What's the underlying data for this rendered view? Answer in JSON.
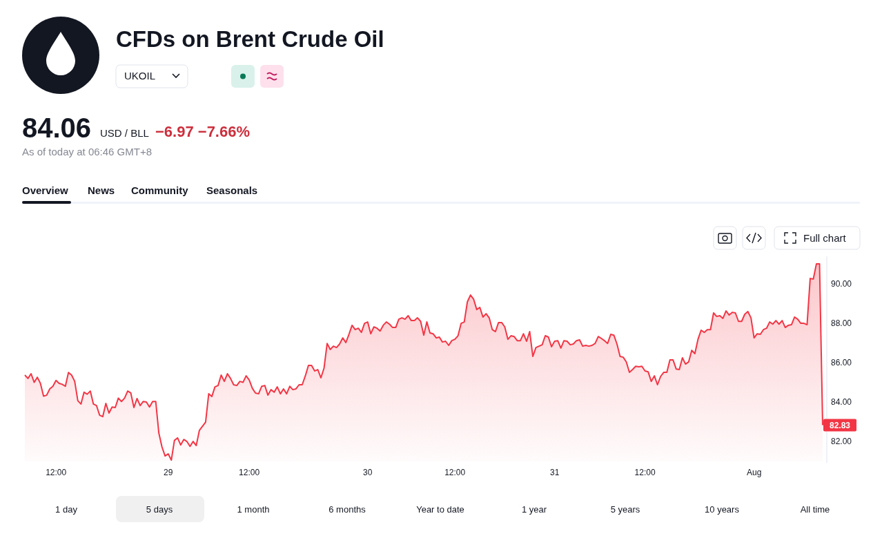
{
  "chart_data": {
    "type": "area",
    "title": "CFDs on Brent Crude Oil",
    "color": "#f23645",
    "categories": [
      null,
      null,
      null,
      null,
      null,
      null,
      null,
      null,
      null,
      null,
      "12:00",
      null,
      null,
      null,
      null,
      null,
      null,
      null,
      null,
      null,
      null,
      null,
      null,
      null,
      null,
      null,
      null,
      null,
      null,
      null,
      null,
      null,
      null,
      null,
      null,
      null,
      null,
      null,
      null,
      null,
      null,
      null,
      null,
      null,
      null,
      null,
      "29",
      null,
      null,
      null,
      null,
      null,
      null,
      null,
      null,
      null,
      null,
      null,
      null,
      null,
      null,
      null,
      null,
      null,
      null,
      null,
      null,
      null,
      null,
      null,
      null,
      null,
      "12:00",
      null,
      null,
      null,
      null,
      null,
      null,
      null,
      null,
      null,
      null,
      null,
      null,
      null,
      null,
      null,
      null,
      null,
      null,
      null,
      null,
      null,
      null,
      null,
      null,
      null,
      null,
      null,
      null,
      null,
      null,
      null,
      null,
      null,
      null,
      null,
      null,
      null,
      "30",
      null,
      null,
      null,
      null,
      null,
      null,
      null,
      null,
      null,
      null,
      null,
      null,
      null,
      null,
      null,
      null,
      null,
      null,
      null,
      null,
      null,
      null,
      null,
      null,
      null,
      null,
      null,
      "12:00",
      null,
      null,
      null,
      null,
      null,
      null,
      null,
      null,
      null,
      null,
      null,
      null,
      null,
      null,
      null,
      null,
      null,
      null,
      null,
      null,
      null,
      null,
      null,
      null,
      null,
      null,
      null,
      null,
      null,
      null,
      null,
      "31",
      null,
      null,
      null,
      null,
      null,
      null,
      null,
      null,
      null,
      null,
      null,
      null,
      null,
      null,
      null,
      null,
      null,
      null,
      null,
      null,
      null,
      null,
      null,
      null,
      null,
      null,
      null,
      null,
      "12:00",
      null,
      null,
      null,
      null,
      null,
      null,
      null,
      null,
      null,
      null,
      null,
      null,
      null,
      null,
      null,
      null,
      null,
      null,
      null,
      null,
      null,
      null,
      null,
      null,
      null,
      null,
      null,
      null,
      null,
      null,
      null,
      null,
      null,
      null,
      "Aug",
      null,
      null,
      null,
      null,
      null,
      null,
      null,
      null,
      null,
      null,
      null,
      null,
      null,
      null,
      null,
      null,
      null,
      null,
      null,
      null,
      null,
      null
    ],
    "values": [
      85.37,
      85.2,
      85.44,
      85.0,
      85.26,
      84.95,
      84.3,
      84.35,
      84.67,
      84.8,
      85.1,
      84.95,
      84.9,
      84.8,
      85.5,
      85.37,
      85.05,
      84.07,
      83.9,
      84.5,
      84.4,
      84.56,
      83.9,
      83.82,
      83.33,
      83.26,
      83.93,
      83.44,
      83.75,
      83.72,
      84.2,
      84.03,
      84.2,
      84.56,
      84.46,
      83.72,
      84.18,
      83.82,
      84.03,
      84.0,
      83.75,
      84.03,
      84.03,
      82.42,
      81.72,
      81.26,
      81.37,
      81.05,
      82.05,
      82.18,
      81.82,
      82.1,
      82.0,
      81.75,
      82.0,
      81.79,
      82.56,
      82.77,
      82.98,
      84.42,
      84.28,
      84.77,
      84.84,
      85.37,
      85.05,
      85.44,
      85.2,
      84.88,
      84.84,
      85.05,
      85.0,
      85.33,
      85.12,
      84.7,
      84.46,
      84.42,
      84.8,
      84.84,
      84.35,
      84.63,
      84.5,
      84.77,
      84.42,
      84.67,
      84.42,
      84.8,
      84.63,
      84.67,
      84.88,
      84.88,
      85.33,
      85.86,
      85.86,
      85.58,
      85.65,
      85.23,
      85.72,
      86.98,
      86.67,
      86.84,
      86.77,
      86.95,
      87.26,
      87.02,
      87.44,
      87.9,
      87.68,
      87.75,
      87.54,
      88.0,
      88.07,
      87.47,
      87.82,
      87.75,
      87.61,
      87.9,
      88.07,
      87.96,
      87.79,
      87.79,
      88.21,
      88.28,
      88.21,
      88.39,
      88.14,
      88.14,
      88.28,
      88.1,
      87.4,
      88.07,
      87.51,
      87.47,
      87.26,
      87.3,
      87.05,
      87.09,
      86.88,
      87.12,
      87.19,
      87.37,
      88.0,
      88.07,
      89.09,
      89.44,
      89.23,
      88.7,
      88.81,
      88.32,
      88.49,
      88.28,
      87.68,
      87.58,
      88.04,
      88.04,
      87.82,
      87.19,
      87.37,
      87.33,
      87.12,
      87.12,
      87.47,
      87.09,
      87.58,
      86.32,
      86.77,
      86.84,
      86.91,
      87.37,
      87.3,
      86.81,
      87.09,
      87.12,
      86.74,
      87.12,
      87.09,
      86.91,
      86.95,
      87.12,
      87.16,
      86.84,
      86.88,
      86.84,
      86.88,
      86.98,
      87.33,
      87.23,
      87.12,
      86.98,
      87.44,
      87.4,
      86.95,
      86.32,
      86.28,
      86.04,
      85.51,
      85.65,
      85.82,
      85.79,
      85.82,
      85.58,
      85.54,
      85.05,
      85.33,
      84.88,
      85.3,
      85.51,
      85.51,
      86.14,
      86.14,
      85.68,
      85.65,
      86.25,
      85.93,
      86.04,
      86.63,
      86.46,
      87.19,
      87.65,
      87.54,
      87.68,
      87.68,
      88.53,
      88.35,
      88.39,
      88.25,
      88.63,
      88.42,
      88.56,
      88.53,
      88.1,
      88.1,
      88.46,
      88.6,
      88.28,
      87.26,
      87.47,
      87.44,
      87.68,
      87.75,
      88.07,
      87.96,
      88.14,
      87.96,
      88.14,
      87.79,
      87.9,
      87.93,
      88.32,
      88.21,
      88.0,
      88.0,
      87.93,
      90.28,
      90.25,
      91.02,
      91.02,
      82.83
    ],
    "ylim": [
      80.9,
      91.4
    ],
    "yticks": [
      {
        "value": 82,
        "label": "82.00"
      },
      {
        "value": 84,
        "label": "84.00"
      },
      {
        "value": 86,
        "label": "86.00"
      },
      {
        "value": 88,
        "label": "88.00"
      },
      {
        "value": 90,
        "label": "90.00"
      }
    ],
    "annotations": [
      "UKOIL",
      "84.06",
      "USD / BLL",
      "−6.97 −7.66%",
      "As of today at 06:46 GMT+8",
      "Overview",
      "News",
      "Community",
      "Seasonals",
      "Full chart",
      "1 day",
      "5 days",
      "1 month",
      "6 months",
      "Year to date",
      "1 year",
      "5 years",
      "10 years",
      "All time",
      "82.83"
    ]
  }
}
